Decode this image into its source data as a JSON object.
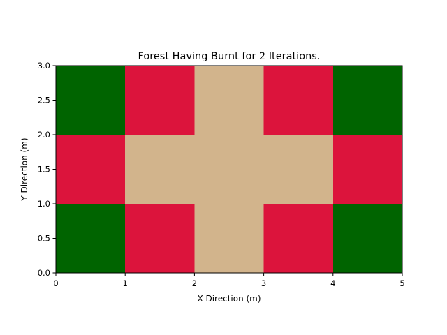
{
  "chart_data": {
    "type": "heatmap",
    "title": "Forest Having Burnt for 2 Iterations.",
    "xlabel": "X Direction (m)",
    "ylabel": "Y Direction (m)",
    "xlim": [
      0,
      5
    ],
    "ylim": [
      0,
      3
    ],
    "xticks": [
      0,
      1,
      2,
      3,
      4,
      5
    ],
    "yticks": [
      0.0,
      0.5,
      1.0,
      1.5,
      2.0,
      2.5,
      3.0
    ],
    "xtick_labels": [
      "0",
      "1",
      "2",
      "3",
      "4",
      "5"
    ],
    "ytick_labels": [
      "0.0",
      "0.5",
      "1.0",
      "1.5",
      "2.0",
      "2.5",
      "3.0"
    ],
    "grid": false,
    "colors": {
      "tree": "#006400",
      "burning": "#dc143c",
      "burnt": "#d2b48c"
    },
    "rows_bottom_to_top": [
      [
        "tree",
        "burning",
        "burnt",
        "burning",
        "tree"
      ],
      [
        "burning",
        "burnt",
        "burnt",
        "burnt",
        "burning"
      ],
      [
        "tree",
        "burning",
        "burnt",
        "burning",
        "tree"
      ]
    ]
  }
}
